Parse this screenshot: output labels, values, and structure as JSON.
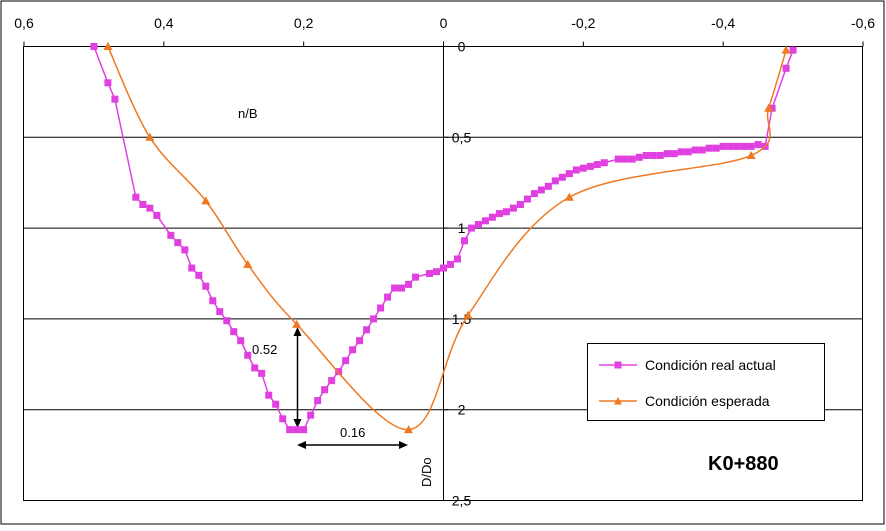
{
  "chart_data": {
    "type": "line",
    "x_axis": {
      "min": -0.6,
      "max": 0.6,
      "reversed": true,
      "position": "top",
      "ticks": [
        0.6,
        0.4,
        0.2,
        0,
        -0.2,
        -0.4,
        -0.6
      ],
      "tick_labels": [
        "0,6",
        "0,4",
        "0,2",
        "0",
        "-0,2",
        "-0,4",
        "-0,6"
      ],
      "label": "n/B"
    },
    "y_axis": {
      "min": 0,
      "max": 2.5,
      "reversed": true,
      "position": "x=0",
      "ticks": [
        0,
        0.5,
        1,
        1.5,
        2,
        2.5
      ],
      "tick_labels": [
        "0",
        "0,5",
        "1",
        "1,5",
        "2",
        "2,5"
      ],
      "label": "D/Do"
    },
    "grid": "horizontal",
    "legend_position": "right",
    "annotation_station": "K0+880",
    "dimension_labels": [
      "0.52",
      "0.16"
    ],
    "series": [
      {
        "name": "Condición real actual",
        "color": "#e040e0",
        "marker": "square",
        "points": [
          [
            0.5,
            0.0
          ],
          [
            0.48,
            0.2
          ],
          [
            0.47,
            0.29
          ],
          [
            0.44,
            0.83
          ],
          [
            0.43,
            0.87
          ],
          [
            0.42,
            0.89
          ],
          [
            0.41,
            0.93
          ],
          [
            0.39,
            1.04
          ],
          [
            0.38,
            1.08
          ],
          [
            0.37,
            1.12
          ],
          [
            0.36,
            1.22
          ],
          [
            0.35,
            1.26
          ],
          [
            0.34,
            1.32
          ],
          [
            0.33,
            1.4
          ],
          [
            0.32,
            1.46
          ],
          [
            0.31,
            1.51
          ],
          [
            0.3,
            1.57
          ],
          [
            0.29,
            1.62
          ],
          [
            0.28,
            1.7
          ],
          [
            0.27,
            1.77
          ],
          [
            0.26,
            1.8
          ],
          [
            0.25,
            1.92
          ],
          [
            0.24,
            1.97
          ],
          [
            0.23,
            2.05
          ],
          [
            0.22,
            2.11
          ],
          [
            0.21,
            2.11
          ],
          [
            0.2,
            2.11
          ],
          [
            0.19,
            2.03
          ],
          [
            0.18,
            1.95
          ],
          [
            0.17,
            1.89
          ],
          [
            0.16,
            1.84
          ],
          [
            0.15,
            1.79
          ],
          [
            0.14,
            1.73
          ],
          [
            0.13,
            1.67
          ],
          [
            0.12,
            1.62
          ],
          [
            0.11,
            1.56
          ],
          [
            0.1,
            1.5
          ],
          [
            0.09,
            1.44
          ],
          [
            0.08,
            1.38
          ],
          [
            0.07,
            1.33
          ],
          [
            0.06,
            1.33
          ],
          [
            0.05,
            1.31
          ],
          [
            0.04,
            1.27
          ],
          [
            0.02,
            1.25
          ],
          [
            0.01,
            1.24
          ],
          [
            0.0,
            1.22
          ],
          [
            -0.01,
            1.2
          ],
          [
            -0.02,
            1.17
          ],
          [
            -0.03,
            1.07
          ],
          [
            -0.04,
            1.0
          ],
          [
            -0.05,
            0.98
          ],
          [
            -0.06,
            0.96
          ],
          [
            -0.07,
            0.94
          ],
          [
            -0.08,
            0.92
          ],
          [
            -0.09,
            0.91
          ],
          [
            -0.1,
            0.89
          ],
          [
            -0.11,
            0.87
          ],
          [
            -0.12,
            0.84
          ],
          [
            -0.13,
            0.81
          ],
          [
            -0.14,
            0.79
          ],
          [
            -0.15,
            0.77
          ],
          [
            -0.16,
            0.74
          ],
          [
            -0.17,
            0.72
          ],
          [
            -0.18,
            0.7
          ],
          [
            -0.19,
            0.68
          ],
          [
            -0.2,
            0.67
          ],
          [
            -0.21,
            0.66
          ],
          [
            -0.22,
            0.65
          ],
          [
            -0.23,
            0.64
          ],
          [
            -0.25,
            0.62
          ],
          [
            -0.26,
            0.62
          ],
          [
            -0.27,
            0.62
          ],
          [
            -0.28,
            0.61
          ],
          [
            -0.29,
            0.6
          ],
          [
            -0.3,
            0.6
          ],
          [
            -0.31,
            0.6
          ],
          [
            -0.32,
            0.59
          ],
          [
            -0.33,
            0.59
          ],
          [
            -0.34,
            0.58
          ],
          [
            -0.35,
            0.58
          ],
          [
            -0.36,
            0.57
          ],
          [
            -0.37,
            0.57
          ],
          [
            -0.38,
            0.56
          ],
          [
            -0.39,
            0.56
          ],
          [
            -0.4,
            0.55
          ],
          [
            -0.41,
            0.55
          ],
          [
            -0.42,
            0.55
          ],
          [
            -0.43,
            0.55
          ],
          [
            -0.44,
            0.55
          ],
          [
            -0.45,
            0.54
          ],
          [
            -0.46,
            0.55
          ],
          [
            -0.47,
            0.34
          ],
          [
            -0.49,
            0.12
          ],
          [
            -0.5,
            0.02
          ]
        ]
      },
      {
        "name": "Condición esperada",
        "color": "#f07820",
        "marker": "triangle",
        "smooth": true,
        "points": [
          [
            0.48,
            0.0
          ],
          [
            0.42,
            0.5
          ],
          [
            0.34,
            0.85
          ],
          [
            0.28,
            1.2
          ],
          [
            0.21,
            1.53
          ],
          [
            0.05,
            2.11
          ],
          [
            -0.035,
            1.48
          ],
          [
            -0.18,
            0.83
          ],
          [
            -0.44,
            0.6
          ],
          [
            -0.465,
            0.34
          ],
          [
            -0.49,
            0.02
          ]
        ]
      }
    ]
  }
}
